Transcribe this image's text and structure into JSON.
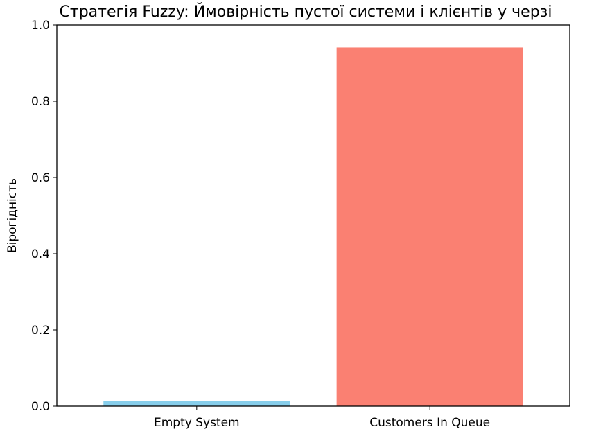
{
  "chart_data": {
    "type": "bar",
    "title": "Стратегія Fuzzy: Ймовірність пустої системи і клієнтів у черзі",
    "xlabel": "",
    "ylabel": "Вірогідність",
    "categories": [
      "Empty System",
      "Customers In Queue"
    ],
    "values": [
      0.013,
      0.941
    ],
    "colors": [
      "#87ceeb",
      "#fa8072"
    ],
    "ylim": [
      0.0,
      1.0
    ],
    "yticks": [
      "0.0",
      "0.2",
      "0.4",
      "0.6",
      "0.8",
      "1.0"
    ],
    "grid": false,
    "legend": "none"
  }
}
